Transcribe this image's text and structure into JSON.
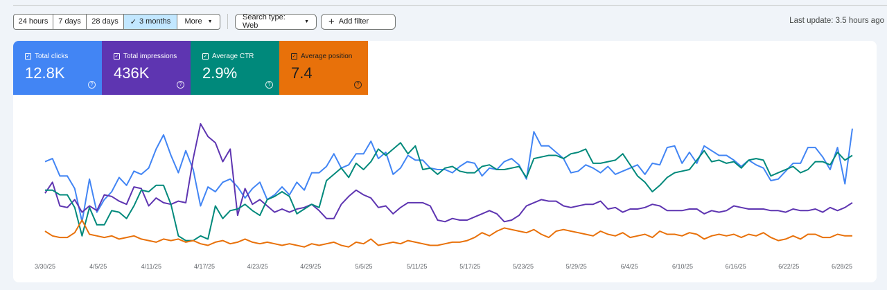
{
  "toolbar": {
    "ranges": [
      {
        "label": "24 hours",
        "selected": false
      },
      {
        "label": "7 days",
        "selected": false
      },
      {
        "label": "28 days",
        "selected": false
      },
      {
        "label": "3 months",
        "selected": true
      },
      {
        "label": "More",
        "selected": false
      }
    ],
    "search_type": "Search type: Web",
    "add_filter": "Add filter",
    "last_update": "Last update: 3.5 hours ago"
  },
  "metrics": [
    {
      "name": "Total clicks",
      "value": "12.8K",
      "color": "#4285f4"
    },
    {
      "name": "Total impressions",
      "value": "436K",
      "color": "#5e35b1"
    },
    {
      "name": "Average CTR",
      "value": "2.9%",
      "color": "#00897b"
    },
    {
      "name": "Average position",
      "value": "7.4",
      "color": "#e8710a"
    }
  ],
  "chart_data": {
    "type": "line",
    "x_ticks": [
      "3/30/25",
      "4/5/25",
      "4/11/25",
      "4/17/25",
      "4/23/25",
      "4/29/25",
      "5/5/25",
      "5/11/25",
      "5/17/25",
      "5/23/25",
      "5/29/25",
      "6/4/25",
      "6/10/25",
      "6/16/25",
      "6/22/25",
      "6/28/25"
    ],
    "x_range": [
      "3/30/25",
      "6/29/25"
    ],
    "y_range": [
      0,
      100
    ],
    "grid": false,
    "note": "Series values are relative heights (0-100) read from the chart; no y-axis is printed.",
    "series": [
      {
        "name": "Total clicks",
        "color": "#4285f4",
        "values": [
          62,
          64,
          53,
          53,
          45,
          24,
          51,
          30,
          38,
          43,
          52,
          47,
          56,
          54,
          58,
          70,
          79,
          66,
          55,
          69,
          57,
          34,
          46,
          43,
          49,
          51,
          46,
          39,
          45,
          49,
          38,
          41,
          46,
          41,
          49,
          44,
          55,
          55,
          59,
          67,
          58,
          60,
          67,
          67,
          75,
          64,
          68,
          54,
          58,
          66,
          63,
          63,
          58,
          57,
          57,
          55,
          59,
          62,
          61,
          53,
          58,
          57,
          62,
          64,
          60,
          51,
          81,
          72,
          72,
          68,
          64,
          55,
          56,
          60,
          58,
          55,
          59,
          54,
          56,
          58,
          60,
          54,
          61,
          60,
          71,
          72,
          61,
          68,
          61,
          72,
          69,
          66,
          66,
          63,
          59,
          63,
          60,
          58,
          50,
          51,
          56,
          61,
          61,
          71,
          71,
          65,
          57,
          71,
          48,
          83
        ]
      },
      {
        "name": "Total impressions",
        "color": "#5e35b1",
        "values": [
          42,
          49,
          34,
          33,
          38,
          30,
          34,
          31,
          41,
          40,
          37,
          35,
          46,
          45,
          34,
          39,
          36,
          35,
          37,
          36,
          64,
          86,
          78,
          74,
          62,
          70,
          28,
          45,
          35,
          38,
          34,
          30,
          32,
          30,
          32,
          33,
          35,
          31,
          26,
          26,
          35,
          40,
          44,
          41,
          39,
          33,
          34,
          29,
          33,
          36,
          36,
          36,
          34,
          25,
          24,
          26,
          25,
          25,
          27,
          29,
          31,
          29,
          24,
          25,
          28,
          34,
          36,
          38,
          37,
          37,
          34,
          33,
          34,
          35,
          35,
          37,
          32,
          33,
          30,
          32,
          32,
          33,
          35,
          34,
          31,
          31,
          31,
          32,
          32,
          29,
          31,
          30,
          31,
          34,
          33,
          32,
          32,
          32,
          31,
          31,
          30,
          32,
          31,
          31,
          32,
          30,
          33,
          31,
          33,
          36
        ]
      },
      {
        "name": "Average CTR",
        "color": "#00897b",
        "values": [
          44,
          44,
          41,
          41,
          33,
          15,
          33,
          22,
          22,
          31,
          30,
          26,
          34,
          44,
          43,
          47,
          47,
          35,
          15,
          12,
          12,
          15,
          13,
          34,
          26,
          31,
          32,
          35,
          31,
          28,
          38,
          40,
          43,
          40,
          29,
          32,
          35,
          33,
          50,
          54,
          58,
          52,
          61,
          57,
          62,
          70,
          66,
          70,
          74,
          67,
          72,
          57,
          58,
          54,
          58,
          59,
          56,
          55,
          55,
          59,
          60,
          57,
          57,
          58,
          59,
          52,
          64,
          65,
          66,
          66,
          64,
          67,
          68,
          70,
          61,
          61,
          62,
          63,
          67,
          60,
          53,
          49,
          43,
          47,
          52,
          55,
          56,
          57,
          63,
          69,
          62,
          63,
          61,
          62,
          58,
          63,
          64,
          63,
          53,
          55,
          57,
          59,
          55,
          57,
          62,
          62,
          60,
          68,
          63,
          66
        ]
      },
      {
        "name": "Average position",
        "color": "#e8710a",
        "values": [
          18,
          15,
          14,
          14,
          17,
          25,
          16,
          15,
          14,
          15,
          13,
          14,
          15,
          13,
          12,
          11,
          13,
          12,
          13,
          11,
          12,
          10,
          9,
          11,
          12,
          10,
          11,
          13,
          11,
          10,
          11,
          10,
          9,
          10,
          9,
          8,
          10,
          9,
          10,
          11,
          9,
          8,
          11,
          10,
          13,
          9,
          10,
          11,
          10,
          12,
          11,
          10,
          9,
          9,
          10,
          11,
          11,
          12,
          14,
          17,
          15,
          18,
          20,
          19,
          18,
          17,
          19,
          16,
          14,
          18,
          19,
          18,
          17,
          16,
          15,
          18,
          16,
          15,
          17,
          14,
          15,
          16,
          14,
          18,
          16,
          16,
          15,
          17,
          16,
          13,
          15,
          16,
          15,
          16,
          14,
          16,
          15,
          17,
          14,
          12,
          13,
          15,
          13,
          16,
          16,
          14,
          14,
          16,
          15,
          15
        ]
      }
    ]
  }
}
